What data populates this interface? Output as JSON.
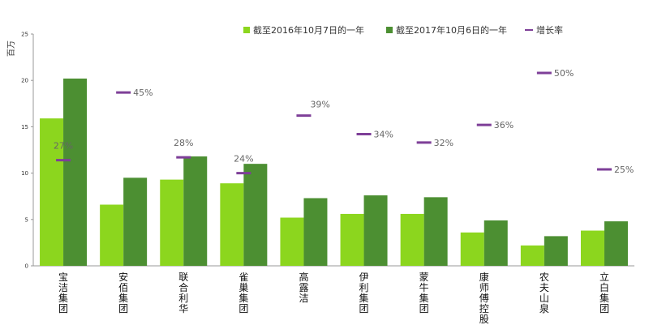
{
  "chart_data": {
    "type": "bar",
    "ylabel": "百万",
    "ylim": [
      0,
      25
    ],
    "yticks": [
      0,
      5,
      10,
      15,
      20,
      25
    ],
    "categories": [
      "宝洁集团",
      "安佰集团",
      "联合利华",
      "雀巢集团",
      "高露洁",
      "伊利集团",
      "蒙牛集团",
      "康师傅控股",
      "农夫山泉",
      "立白集团"
    ],
    "category_lines": [
      [
        "宝",
        "洁",
        "集",
        "团"
      ],
      [
        "安",
        "佰",
        "集",
        "团"
      ],
      [
        "联",
        "合",
        "利",
        "华"
      ],
      [
        "雀",
        "巢",
        "集",
        "团"
      ],
      [
        "高",
        "露",
        "洁"
      ],
      [
        "伊",
        "利",
        "集",
        "团"
      ],
      [
        "蒙",
        "牛",
        "集",
        "团"
      ],
      [
        "康",
        "师",
        "傅",
        "控",
        "股"
      ],
      [
        "农",
        "夫",
        "山",
        "泉"
      ],
      [
        "立",
        "白",
        "集",
        "团"
      ]
    ],
    "series": [
      {
        "name": "截至2016年10月7日的一年",
        "color": "#8cd61e",
        "values": [
          15.9,
          6.6,
          9.3,
          8.9,
          5.2,
          5.6,
          5.6,
          3.6,
          2.2,
          3.8
        ]
      },
      {
        "name": "截至2017年10月6日的一年",
        "color": "#4c8f32",
        "values": [
          20.2,
          9.5,
          11.8,
          11.0,
          7.3,
          7.6,
          7.4,
          4.9,
          3.2,
          4.8
        ]
      }
    ],
    "growth": {
      "name": "增长率",
      "color": "#7e3f98",
      "labels": [
        "27%",
        "45%",
        "28%",
        "24%",
        "39%",
        "34%",
        "32%",
        "36%",
        "50%",
        "25%"
      ],
      "marker_values": [
        11.4,
        18.7,
        11.7,
        10.0,
        16.2,
        14.2,
        13.3,
        15.2,
        20.8,
        10.4
      ],
      "label_placement": [
        "above",
        "right",
        "above",
        "above",
        "right-above",
        "right",
        "right",
        "right",
        "right",
        "right"
      ]
    },
    "legend_position": "top-right",
    "grid": false
  }
}
